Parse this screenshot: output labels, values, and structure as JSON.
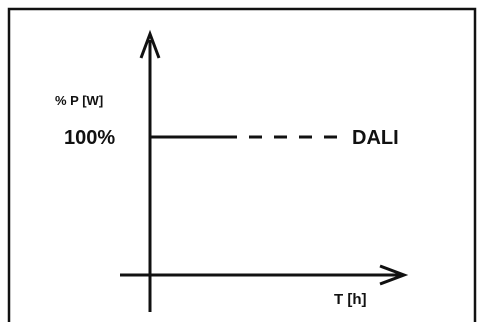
{
  "diagram": {
    "y_axis_label": "% P [W]",
    "level_label": "100%",
    "line_label": "DALI",
    "x_axis_label": "T [h]"
  },
  "colors": {
    "stroke": "#111111",
    "background": "#ffffff"
  }
}
